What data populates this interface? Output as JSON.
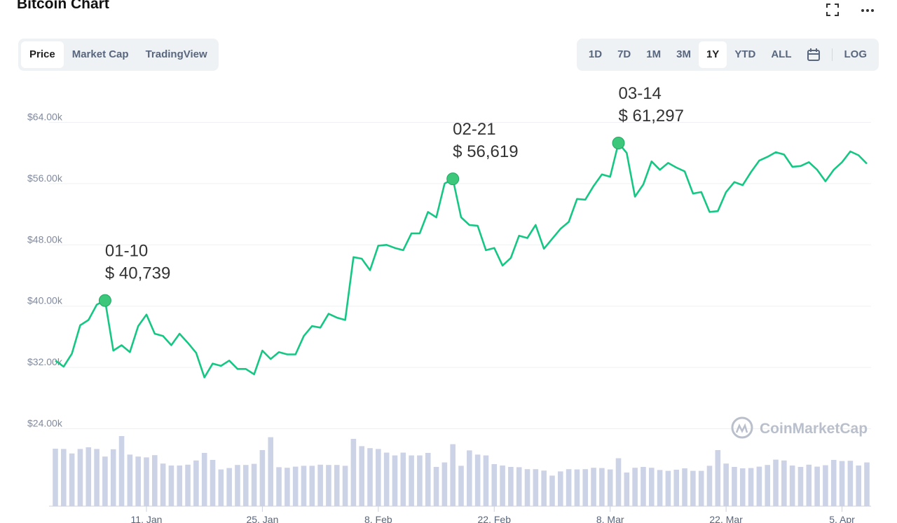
{
  "header": {
    "title": "Bitcoin Chart"
  },
  "tabs": [
    {
      "label": "Price",
      "active": true
    },
    {
      "label": "Market Cap",
      "active": false
    },
    {
      "label": "TradingView",
      "active": false
    }
  ],
  "ranges": [
    {
      "label": "1D",
      "active": false
    },
    {
      "label": "7D",
      "active": false
    },
    {
      "label": "1M",
      "active": false
    },
    {
      "label": "3M",
      "active": false
    },
    {
      "label": "1Y",
      "active": true
    },
    {
      "label": "YTD",
      "active": false
    },
    {
      "label": "ALL",
      "active": false
    }
  ],
  "log_label": "LOG",
  "watermark": "CoinMarketCap",
  "icons": {
    "fullscreen": "fullscreen-icon",
    "more": "more-icon",
    "calendar": "calendar-icon"
  },
  "colors": {
    "line": "#16c784",
    "point": "#3cc77a",
    "volume": "#cdd3e6",
    "grid": "#eef0f3"
  },
  "chart_data": {
    "type": "line",
    "title": "Bitcoin Chart",
    "ylim": [
      24000,
      66000
    ],
    "y_ticks": [
      {
        "value": 24000,
        "label": "$24.00k"
      },
      {
        "value": 32000,
        "label": "$32.00k"
      },
      {
        "value": 40000,
        "label": "$40.00k"
      },
      {
        "value": 48000,
        "label": "$48.00k"
      },
      {
        "value": 56000,
        "label": "$56.00k"
      },
      {
        "value": 64000,
        "label": "$64.00k"
      }
    ],
    "x_ticks": [
      {
        "day": 11,
        "label": "11. Jan"
      },
      {
        "day": 25,
        "label": "25. Jan"
      },
      {
        "day": 39,
        "label": "8. Feb"
      },
      {
        "day": 53,
        "label": "22. Feb"
      },
      {
        "day": 67,
        "label": "8. Mar"
      },
      {
        "day": 81,
        "label": "22. Mar"
      },
      {
        "day": 95,
        "label": "5. Apr"
      }
    ],
    "day_range": [
      0,
      100
    ],
    "grid": true,
    "series": [
      {
        "day": [
          0,
          1,
          2,
          3,
          4,
          5,
          6,
          7,
          8,
          9,
          10,
          11,
          12,
          13,
          14,
          15,
          16,
          17,
          18,
          19,
          20,
          21,
          22,
          23,
          24,
          25,
          26,
          27,
          28,
          29,
          30,
          31,
          32,
          33,
          34,
          35,
          36,
          37,
          38,
          39,
          40,
          41,
          42,
          43,
          44,
          45,
          46,
          47,
          48,
          49,
          50,
          51,
          52,
          53,
          54,
          55,
          56,
          57,
          58,
          59,
          60,
          61,
          62,
          63,
          64,
          65,
          66,
          67,
          68,
          69,
          70,
          71,
          72,
          73,
          74,
          75,
          76,
          77,
          78,
          79,
          80,
          81,
          82,
          83,
          84,
          85,
          86,
          87,
          88,
          89,
          90,
          91,
          92,
          93,
          94,
          95,
          96,
          97,
          98
        ],
        "price": [
          32900,
          32100,
          33800,
          37500,
          38200,
          40200,
          40739,
          34200,
          34900,
          34000,
          37400,
          38900,
          36400,
          36100,
          34900,
          36400,
          35200,
          33900,
          30700,
          32500,
          32200,
          32900,
          31800,
          31800,
          31100,
          34200,
          33100,
          34000,
          33700,
          33700,
          36100,
          37400,
          37200,
          39000,
          38500,
          38200,
          46400,
          46200,
          44700,
          47900,
          48000,
          47600,
          47300,
          49500,
          49500,
          52300,
          51600,
          56000,
          56619,
          51600,
          50600,
          50500,
          47300,
          47600,
          45300,
          46300,
          49200,
          48900,
          50600,
          47500,
          48800,
          50100,
          51000,
          54000,
          53900,
          55700,
          57200,
          56900,
          61297,
          60000,
          54300,
          55900,
          58900,
          57800,
          58700,
          58100,
          57600,
          54700,
          54900,
          52300,
          52400,
          54900,
          56200,
          55800,
          57500,
          59000,
          59500,
          60100,
          59800,
          58200,
          58300,
          58800,
          57800,
          56300,
          57800,
          58800,
          60200,
          59700,
          58600
        ]
      }
    ],
    "volume": [
      20.5,
      20.4,
      18.8,
      20.4,
      21.0,
      20.4,
      17.7,
      20.3,
      25.0,
      18.4,
      17.7,
      17.4,
      18.2,
      15.2,
      14.5,
      14.5,
      14.8,
      16.3,
      19.0,
      16.5,
      13.1,
      13.6,
      14.7,
      14.7,
      15.1,
      20.0,
      24.6,
      13.9,
      13.7,
      14.1,
      14.4,
      14.4,
      14.8,
      14.7,
      14.7,
      14.4,
      24.0,
      21.4,
      20.7,
      20.4,
      19.1,
      18.1,
      19.1,
      18.1,
      18.1,
      19.0,
      14.0,
      15.6,
      22.1,
      14.4,
      19.9,
      18.4,
      18.1,
      15.0,
      14.5,
      14.0,
      13.9,
      13.2,
      13.2,
      12.7,
      10.9,
      12.4,
      13.2,
      13.1,
      13.2,
      13.7,
      13.6,
      13.1,
      17.1,
      12.0,
      13.7,
      14.0,
      13.7,
      12.9,
      12.6,
      13.0,
      13.5,
      12.6,
      12.6,
      14.4,
      20.0,
      15.2,
      14.0,
      13.5,
      13.6,
      14.1,
      14.7,
      16.6,
      16.3,
      14.5,
      14.0,
      14.8,
      14.1,
      14.6,
      16.5,
      16.1,
      16.2,
      14.5,
      15.6
    ]
  },
  "annotations": [
    {
      "date": "01-10",
      "price": "$ 40,739",
      "day": 6,
      "value": 40739
    },
    {
      "date": "02-21",
      "price": "$ 56,619",
      "day": 48,
      "value": 56619
    },
    {
      "date": "03-14",
      "price": "$ 61,297",
      "day": 68,
      "value": 61297
    }
  ]
}
